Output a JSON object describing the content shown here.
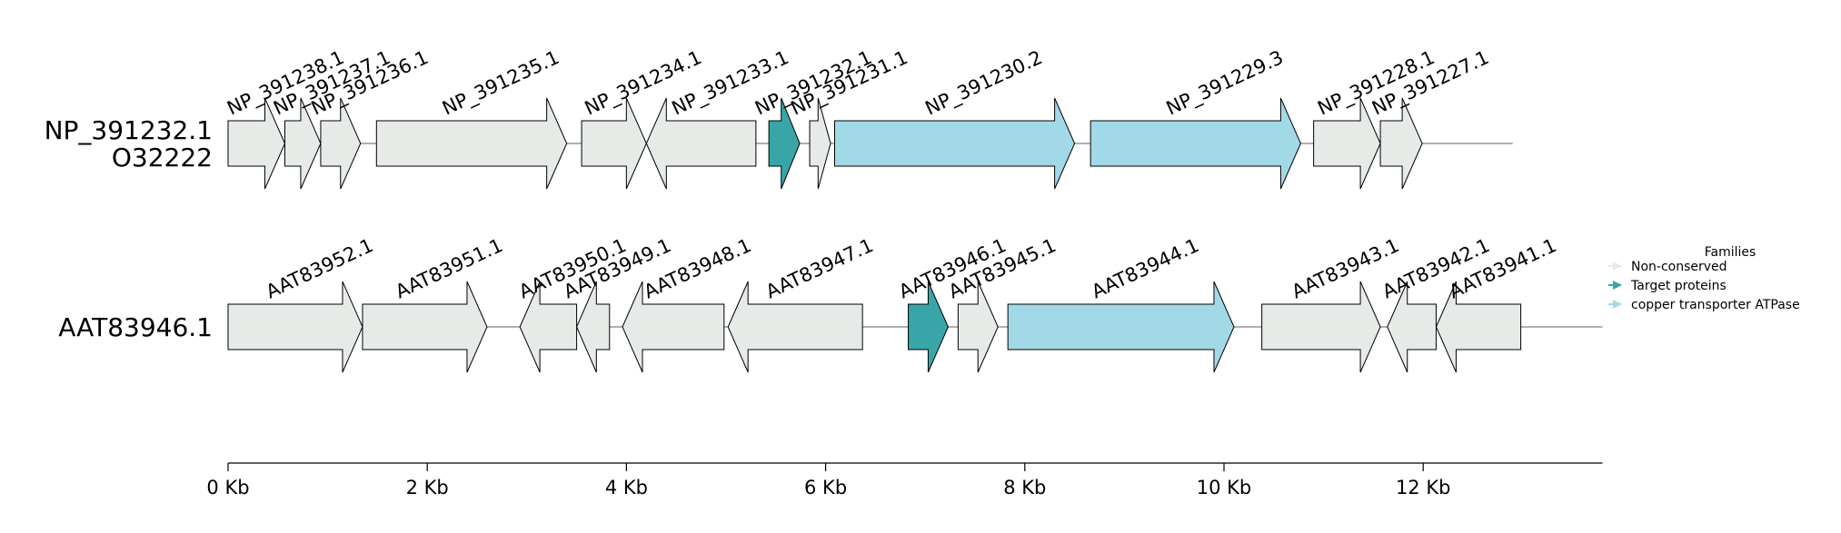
{
  "colors": {
    "non_conserved": "#e6ebe8",
    "target": "#38a6a9",
    "copper": "#a2d9e6",
    "backbone": "#7f7f7f",
    "outline": "#000000"
  },
  "legend": {
    "title": "Families",
    "items": [
      {
        "label": "Non-conserved",
        "family": "non_conserved"
      },
      {
        "label": "Target proteins",
        "family": "target"
      },
      {
        "label": "copper transporter ATPase",
        "family": "copper"
      }
    ]
  },
  "axis": {
    "unit": "Kb",
    "ticks": [
      {
        "value": 0,
        "label": "0 Kb"
      },
      {
        "value": 2,
        "label": "2 Kb"
      },
      {
        "value": 4,
        "label": "4 Kb"
      },
      {
        "value": 6,
        "label": "6 Kb"
      },
      {
        "value": 8,
        "label": "8 Kb"
      },
      {
        "value": 10,
        "label": "10 Kb"
      },
      {
        "value": 12,
        "label": "12 Kb"
      }
    ],
    "max": 13.8
  },
  "tracks": [
    {
      "labels": [
        "NP_391232.1",
        "O32222"
      ],
      "length": 12.9,
      "genes": [
        {
          "name": "NP_391238.1",
          "start": 0.0,
          "end": 0.57,
          "strand": 1,
          "family": "non_conserved"
        },
        {
          "name": "NP_391237.1",
          "start": 0.57,
          "end": 0.93,
          "strand": 1,
          "family": "non_conserved"
        },
        {
          "name": "NP_391236.1",
          "start": 0.93,
          "end": 1.33,
          "strand": 1,
          "family": "non_conserved"
        },
        {
          "name": "NP_391235.1",
          "start": 1.49,
          "end": 3.4,
          "strand": 1,
          "family": "non_conserved"
        },
        {
          "name": "NP_391234.1",
          "start": 3.55,
          "end": 4.2,
          "strand": 1,
          "family": "non_conserved"
        },
        {
          "name": "NP_391233.1",
          "start": 4.2,
          "end": 5.3,
          "strand": -1,
          "family": "non_conserved"
        },
        {
          "name": "NP_391232.1",
          "start": 5.43,
          "end": 5.74,
          "strand": 1,
          "family": "target"
        },
        {
          "name": "NP_391231.1",
          "start": 5.84,
          "end": 6.05,
          "strand": 1,
          "family": "non_conserved"
        },
        {
          "name": "NP_391230.2",
          "start": 6.09,
          "end": 8.5,
          "strand": 1,
          "family": "copper"
        },
        {
          "name": "NP_391229.3",
          "start": 8.66,
          "end": 10.77,
          "strand": 1,
          "family": "copper"
        },
        {
          "name": "NP_391228.1",
          "start": 10.9,
          "end": 11.57,
          "strand": 1,
          "family": "non_conserved"
        },
        {
          "name": "NP_391227.1",
          "start": 11.57,
          "end": 11.99,
          "strand": 1,
          "family": "non_conserved"
        }
      ]
    },
    {
      "labels": [
        "AAT83946.1"
      ],
      "length": 13.8,
      "genes": [
        {
          "name": "AAT83952.1",
          "start": 0.0,
          "end": 1.35,
          "strand": 1,
          "family": "non_conserved"
        },
        {
          "name": "AAT83951.1",
          "start": 1.35,
          "end": 2.6,
          "strand": 1,
          "family": "non_conserved"
        },
        {
          "name": "AAT83950.1",
          "start": 2.93,
          "end": 3.5,
          "strand": -1,
          "family": "non_conserved"
        },
        {
          "name": "AAT83949.1",
          "start": 3.5,
          "end": 3.83,
          "strand": -1,
          "family": "non_conserved"
        },
        {
          "name": "AAT83948.1",
          "start": 3.96,
          "end": 4.98,
          "strand": -1,
          "family": "non_conserved"
        },
        {
          "name": "AAT83947.1",
          "start": 5.02,
          "end": 6.37,
          "strand": -1,
          "family": "non_conserved"
        },
        {
          "name": "AAT83946.1",
          "start": 6.83,
          "end": 7.23,
          "strand": 1,
          "family": "target"
        },
        {
          "name": "AAT83945.1",
          "start": 7.33,
          "end": 7.73,
          "strand": 1,
          "family": "non_conserved"
        },
        {
          "name": "AAT83944.1",
          "start": 7.83,
          "end": 10.1,
          "strand": 1,
          "family": "copper"
        },
        {
          "name": "AAT83943.1",
          "start": 10.38,
          "end": 11.57,
          "strand": 1,
          "family": "non_conserved"
        },
        {
          "name": "AAT83942.1",
          "start": 11.64,
          "end": 12.13,
          "strand": -1,
          "family": "non_conserved"
        },
        {
          "name": "AAT83941.1",
          "start": 12.13,
          "end": 12.98,
          "strand": -1,
          "family": "non_conserved"
        }
      ]
    }
  ]
}
